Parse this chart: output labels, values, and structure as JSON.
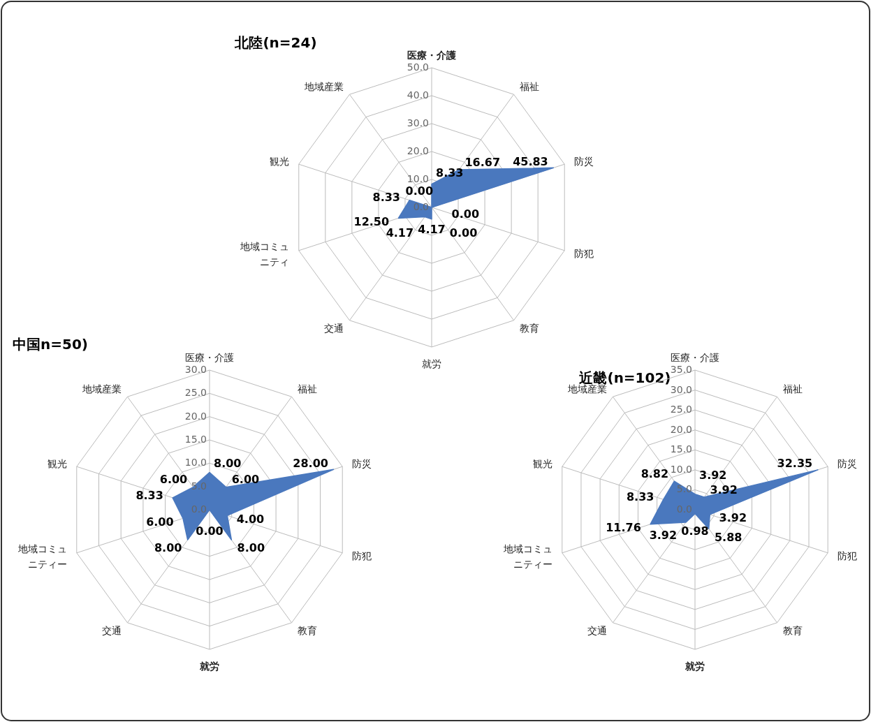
{
  "chart_data": [
    {
      "type": "radar",
      "title": "北陸(n=24)",
      "categories": [
        "医療・介護",
        "福祉",
        "防災",
        "防犯",
        "教育",
        "就労",
        "交通",
        "地域コミュニティ",
        "観光",
        "地域産業"
      ],
      "ylim": [
        0,
        50
      ],
      "yticks": [
        {
          "value": 0,
          "label": "0.0"
        },
        {
          "value": 10,
          "label": "10.0"
        },
        {
          "value": 20,
          "label": "20.0"
        },
        {
          "value": 30,
          "label": "30.0"
        },
        {
          "value": 40,
          "label": "40.0"
        },
        {
          "value": 50,
          "label": "50.0"
        }
      ],
      "grid": true,
      "series": [
        {
          "type": "area",
          "color": "#4a78be",
          "values": [
            8.33,
            16.67,
            45.83,
            0.0,
            0.0,
            4.17,
            4.17,
            12.5,
            8.33,
            0.0
          ],
          "value_labels": [
            "8.33",
            "16.67",
            "45.83",
            "0.00",
            "0.00",
            "4.17",
            "4.17",
            "12.50",
            "8.33",
            "0.00"
          ]
        }
      ]
    },
    {
      "type": "radar",
      "title": "中国n=50)",
      "categories": [
        "医療・介護",
        "福祉",
        "防災",
        "防犯",
        "教育",
        "就労",
        "交通",
        "地域コミュニティー",
        "観光",
        "地域産業"
      ],
      "ylim": [
        0,
        30
      ],
      "yticks": [
        {
          "value": 0,
          "label": "0.0"
        },
        {
          "value": 5,
          "label": "5.0"
        },
        {
          "value": 10,
          "label": "10.0"
        },
        {
          "value": 15,
          "label": "15.0"
        },
        {
          "value": 20,
          "label": "20.0"
        },
        {
          "value": 25,
          "label": "25.0"
        },
        {
          "value": 30,
          "label": "30.0"
        }
      ],
      "grid": true,
      "series": [
        {
          "type": "area",
          "color": "#4a78be",
          "values": [
            8.0,
            6.0,
            28.0,
            4.0,
            8.0,
            0.0,
            8.0,
            6.0,
            8.33,
            6.0
          ],
          "value_labels": [
            "8.00",
            "6.00",
            "28.00",
            "4.00",
            "8.00",
            "0.00",
            "8.00",
            "6.00",
            "8.33",
            "6.00"
          ]
        }
      ]
    },
    {
      "type": "radar",
      "title": "近畿(n=102)",
      "categories": [
        "医療・介護",
        "福祉",
        "防災",
        "防犯",
        "教育",
        "就労",
        "交通",
        "地域コミュニティー",
        "観光",
        "地域産業"
      ],
      "ylim": [
        0,
        35
      ],
      "yticks": [
        {
          "value": 0,
          "label": "0.0"
        },
        {
          "value": 5,
          "label": "5.0"
        },
        {
          "value": 10,
          "label": "10.0"
        },
        {
          "value": 15,
          "label": "15.0"
        },
        {
          "value": 20,
          "label": "20.0"
        },
        {
          "value": 25,
          "label": "25.0"
        },
        {
          "value": 30,
          "label": "30.0"
        },
        {
          "value": 35,
          "label": "35.0"
        }
      ],
      "grid": true,
      "series": [
        {
          "type": "area",
          "color": "#4a78be",
          "values": [
            3.92,
            3.92,
            32.35,
            3.92,
            5.88,
            0.98,
            3.92,
            11.76,
            8.33,
            8.82
          ],
          "value_labels": [
            "3.92",
            "3.92",
            "32.35",
            "3.92",
            "5.88",
            "0.98",
            "3.92",
            "11.76",
            "8.33",
            "8.82"
          ]
        }
      ]
    }
  ]
}
